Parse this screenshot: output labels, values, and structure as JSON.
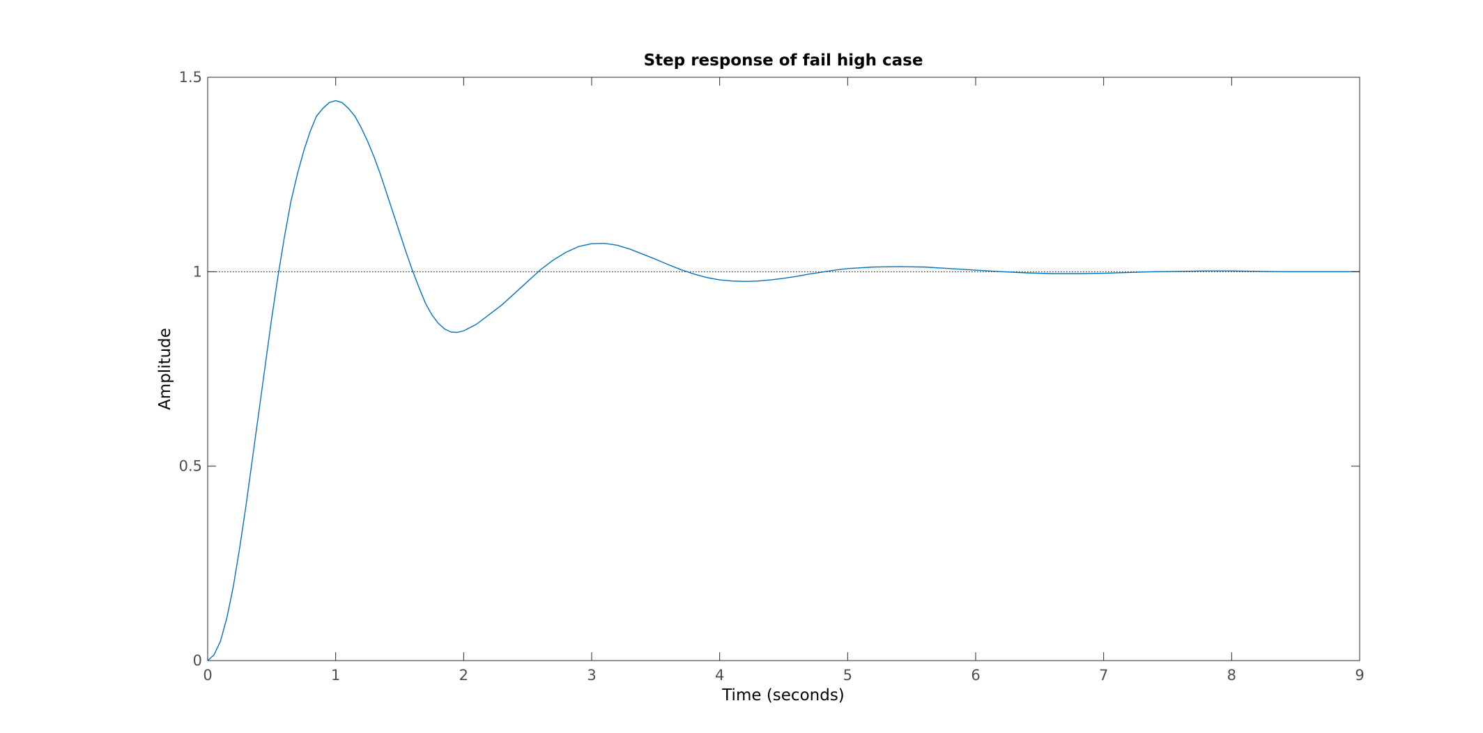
{
  "chart_data": {
    "type": "line",
    "title": "Step response of fail high case",
    "xlabel": "Time (seconds)",
    "ylabel": "Amplitude",
    "xlim": [
      0,
      9
    ],
    "ylim": [
      0,
      1.5
    ],
    "x_ticks": [
      0,
      1,
      2,
      3,
      4,
      5,
      6,
      7,
      8,
      9
    ],
    "x_tick_labels": [
      "0",
      "1",
      "2",
      "3",
      "4",
      "5",
      "6",
      "7",
      "8",
      "9"
    ],
    "y_ticks": [
      0,
      0.5,
      1,
      1.5
    ],
    "y_tick_labels": [
      "0",
      "0.5",
      "1",
      "1.5"
    ],
    "grid": false,
    "reference_line": {
      "y": 1,
      "style": "dotted",
      "color": "#000000"
    },
    "series": [
      {
        "color": "#0072bd",
        "x": [
          0,
          0.05,
          0.1,
          0.15,
          0.2,
          0.25,
          0.3,
          0.35,
          0.4,
          0.45,
          0.5,
          0.55,
          0.6,
          0.65,
          0.7,
          0.75,
          0.8,
          0.85,
          0.9,
          0.95,
          1.0,
          1.05,
          1.1,
          1.15,
          1.2,
          1.25,
          1.3,
          1.35,
          1.4,
          1.45,
          1.5,
          1.55,
          1.6,
          1.65,
          1.7,
          1.75,
          1.8,
          1.85,
          1.9,
          1.95,
          2.0,
          2.1,
          2.2,
          2.3,
          2.4,
          2.5,
          2.6,
          2.7,
          2.8,
          2.9,
          3.0,
          3.1,
          3.2,
          3.3,
          3.4,
          3.5,
          3.6,
          3.7,
          3.8,
          3.9,
          4.0,
          4.1,
          4.2,
          4.3,
          4.4,
          4.5,
          4.6,
          4.7,
          4.8,
          4.9,
          5.0,
          5.2,
          5.4,
          5.6,
          5.8,
          6.0,
          6.2,
          6.4,
          6.6,
          6.8,
          7.0,
          7.2,
          7.4,
          7.6,
          7.8,
          8.0,
          8.2,
          8.4,
          8.6,
          8.8,
          9.0
        ],
        "y": [
          0,
          0.015,
          0.05,
          0.11,
          0.19,
          0.29,
          0.4,
          0.52,
          0.64,
          0.76,
          0.88,
          0.99,
          1.09,
          1.18,
          1.25,
          1.31,
          1.36,
          1.4,
          1.42,
          1.435,
          1.44,
          1.435,
          1.42,
          1.4,
          1.37,
          1.335,
          1.295,
          1.25,
          1.2,
          1.15,
          1.1,
          1.05,
          1.003,
          0.96,
          0.92,
          0.89,
          0.868,
          0.853,
          0.845,
          0.844,
          0.848,
          0.865,
          0.89,
          0.915,
          0.945,
          0.975,
          1.005,
          1.03,
          1.05,
          1.065,
          1.072,
          1.073,
          1.068,
          1.058,
          1.045,
          1.032,
          1.018,
          1.005,
          0.994,
          0.985,
          0.979,
          0.976,
          0.975,
          0.976,
          0.979,
          0.983,
          0.988,
          0.994,
          0.999,
          1.004,
          1.008,
          1.012,
          1.013,
          1.012,
          1.008,
          1.004,
          1.0,
          0.997,
          0.995,
          0.995,
          0.996,
          0.998,
          1.0,
          1.001,
          1.002,
          1.002,
          1.001,
          1.0,
          1.0,
          1.0,
          1.0
        ]
      }
    ]
  }
}
